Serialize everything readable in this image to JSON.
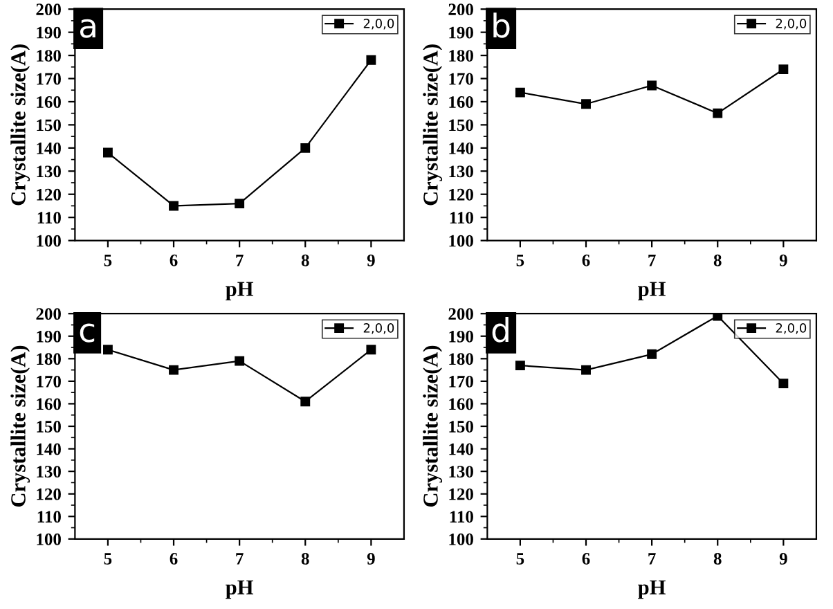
{
  "chart_data": [
    {
      "type": "line",
      "annotations": [
        "a"
      ],
      "xlabel": "pH",
      "ylabel": "Crystallite size(A)",
      "x": [
        5,
        6,
        7,
        8,
        9
      ],
      "series": [
        {
          "name": "2,0,0",
          "color": "#000000",
          "values": [
            138,
            115,
            116,
            140,
            178
          ]
        }
      ],
      "xlim": [
        4.5,
        9.5
      ],
      "xticks": [
        5,
        6,
        7,
        8,
        9
      ],
      "ylim": [
        100,
        200
      ],
      "yticks": [
        100,
        110,
        120,
        130,
        140,
        150,
        160,
        170,
        180,
        190,
        200
      ],
      "marker": "square",
      "legend": "top right",
      "grid": false
    },
    {
      "type": "line",
      "annotations": [
        "b"
      ],
      "xlabel": "pH",
      "ylabel": "Crystallite size(A)",
      "x": [
        5,
        6,
        7,
        8,
        9
      ],
      "series": [
        {
          "name": "2,0,0",
          "color": "#000000",
          "values": [
            164,
            159,
            167,
            155,
            174
          ]
        }
      ],
      "xlim": [
        4.5,
        9.5
      ],
      "xticks": [
        5,
        6,
        7,
        8,
        9
      ],
      "ylim": [
        100,
        200
      ],
      "yticks": [
        100,
        110,
        120,
        130,
        140,
        150,
        160,
        170,
        180,
        190,
        200
      ],
      "marker": "square",
      "legend": "top right",
      "grid": false
    },
    {
      "type": "line",
      "annotations": [
        "c"
      ],
      "xlabel": "pH",
      "ylabel": "Crystallite size(A)",
      "x": [
        5,
        6,
        7,
        8,
        9
      ],
      "series": [
        {
          "name": "2,0,0",
          "color": "#000000",
          "values": [
            184,
            175,
            179,
            161,
            184
          ]
        }
      ],
      "xlim": [
        4.5,
        9.5
      ],
      "xticks": [
        5,
        6,
        7,
        8,
        9
      ],
      "ylim": [
        100,
        200
      ],
      "yticks": [
        100,
        110,
        120,
        130,
        140,
        150,
        160,
        170,
        180,
        190,
        200
      ],
      "marker": "square",
      "legend": "top right",
      "grid": false
    },
    {
      "type": "line",
      "annotations": [
        "d"
      ],
      "xlabel": "pH",
      "ylabel": "Crystallite size(A)",
      "x": [
        5,
        6,
        7,
        8,
        9
      ],
      "series": [
        {
          "name": "2,0,0",
          "color": "#000000",
          "values": [
            177,
            175,
            182,
            199,
            169
          ]
        }
      ],
      "xlim": [
        4.5,
        9.5
      ],
      "xticks": [
        5,
        6,
        7,
        8,
        9
      ],
      "ylim": [
        100,
        200
      ],
      "yticks": [
        100,
        110,
        120,
        130,
        140,
        150,
        160,
        170,
        180,
        190,
        200
      ],
      "marker": "square",
      "legend": "top right",
      "grid": false
    }
  ]
}
